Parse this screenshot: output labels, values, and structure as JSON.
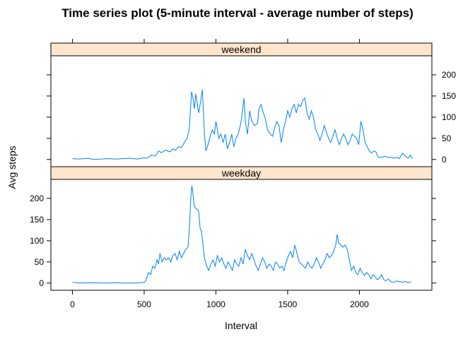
{
  "chart_data": {
    "type": "line",
    "title": "Time series plot (5-minute interval - average number of steps)",
    "xlabel": "Interval",
    "ylabel": "Avg steps",
    "xlim": [
      -150,
      2505
    ],
    "ylim": [
      -17,
      245
    ],
    "x_ticks": [
      0,
      500,
      1000,
      1500,
      2000
    ],
    "y_ticks": [
      0,
      50,
      100,
      150,
      200
    ],
    "grid": false,
    "line_color": "#0080ff",
    "strip_color": "#ffe5cc",
    "panels": [
      {
        "name": "weekend",
        "points": [
          [
            0,
            2
          ],
          [
            50,
            1
          ],
          [
            100,
            3
          ],
          [
            150,
            0
          ],
          [
            200,
            1
          ],
          [
            250,
            2
          ],
          [
            300,
            1
          ],
          [
            350,
            2
          ],
          [
            400,
            3
          ],
          [
            450,
            1
          ],
          [
            500,
            4
          ],
          [
            520,
            3
          ],
          [
            550,
            10
          ],
          [
            580,
            8
          ],
          [
            600,
            20
          ],
          [
            620,
            16
          ],
          [
            650,
            22
          ],
          [
            680,
            18
          ],
          [
            700,
            25
          ],
          [
            720,
            22
          ],
          [
            740,
            30
          ],
          [
            760,
            28
          ],
          [
            780,
            40
          ],
          [
            800,
            50
          ],
          [
            815,
            75
          ],
          [
            830,
            160
          ],
          [
            840,
            145
          ],
          [
            850,
            120
          ],
          [
            860,
            155
          ],
          [
            870,
            130
          ],
          [
            880,
            110
          ],
          [
            895,
            140
          ],
          [
            905,
            165
          ],
          [
            912,
            120
          ],
          [
            920,
            60
          ],
          [
            930,
            20
          ],
          [
            945,
            35
          ],
          [
            960,
            55
          ],
          [
            975,
            70
          ],
          [
            990,
            60
          ],
          [
            1000,
            90
          ],
          [
            1010,
            70
          ],
          [
            1020,
            50
          ],
          [
            1035,
            60
          ],
          [
            1050,
            40
          ],
          [
            1065,
            60
          ],
          [
            1080,
            25
          ],
          [
            1095,
            40
          ],
          [
            1110,
            60
          ],
          [
            1125,
            30
          ],
          [
            1140,
            50
          ],
          [
            1155,
            60
          ],
          [
            1170,
            80
          ],
          [
            1180,
            100
          ],
          [
            1195,
            145
          ],
          [
            1205,
            90
          ],
          [
            1220,
            60
          ],
          [
            1235,
            115
          ],
          [
            1250,
            90
          ],
          [
            1270,
            80
          ],
          [
            1290,
            85
          ],
          [
            1300,
            120
          ],
          [
            1315,
            130
          ],
          [
            1330,
            110
          ],
          [
            1345,
            95
          ],
          [
            1360,
            70
          ],
          [
            1380,
            60
          ],
          [
            1395,
            55
          ],
          [
            1410,
            75
          ],
          [
            1425,
            90
          ],
          [
            1440,
            80
          ],
          [
            1455,
            40
          ],
          [
            1470,
            70
          ],
          [
            1485,
            90
          ],
          [
            1500,
            115
          ],
          [
            1515,
            100
          ],
          [
            1530,
            120
          ],
          [
            1545,
            130
          ],
          [
            1560,
            110
          ],
          [
            1575,
            130
          ],
          [
            1590,
            125
          ],
          [
            1605,
            140
          ],
          [
            1620,
            145
          ],
          [
            1635,
            110
          ],
          [
            1650,
            95
          ],
          [
            1665,
            115
          ],
          [
            1680,
            100
          ],
          [
            1695,
            70
          ],
          [
            1710,
            60
          ],
          [
            1725,
            45
          ],
          [
            1740,
            60
          ],
          [
            1755,
            80
          ],
          [
            1770,
            65
          ],
          [
            1785,
            50
          ],
          [
            1800,
            40
          ],
          [
            1815,
            55
          ],
          [
            1830,
            70
          ],
          [
            1845,
            50
          ],
          [
            1860,
            35
          ],
          [
            1875,
            50
          ],
          [
            1890,
            60
          ],
          [
            1905,
            50
          ],
          [
            1920,
            35
          ],
          [
            1935,
            45
          ],
          [
            1950,
            60
          ],
          [
            1965,
            55
          ],
          [
            1980,
            50
          ],
          [
            1995,
            35
          ],
          [
            2010,
            90
          ],
          [
            2025,
            70
          ],
          [
            2040,
            40
          ],
          [
            2055,
            30
          ],
          [
            2070,
            20
          ],
          [
            2085,
            15
          ],
          [
            2100,
            20
          ],
          [
            2115,
            18
          ],
          [
            2130,
            5
          ],
          [
            2160,
            5
          ],
          [
            2180,
            8
          ],
          [
            2200,
            5
          ],
          [
            2220,
            5
          ],
          [
            2240,
            3
          ],
          [
            2260,
            5
          ],
          [
            2280,
            2
          ],
          [
            2300,
            15
          ],
          [
            2320,
            8
          ],
          [
            2340,
            3
          ],
          [
            2355,
            10
          ],
          [
            2370,
            2
          ]
        ]
      },
      {
        "name": "weekday",
        "points": [
          [
            0,
            2
          ],
          [
            20,
            1
          ],
          [
            50,
            0
          ],
          [
            80,
            1
          ],
          [
            100,
            0
          ],
          [
            150,
            1
          ],
          [
            200,
            0
          ],
          [
            250,
            0
          ],
          [
            300,
            1
          ],
          [
            350,
            0
          ],
          [
            400,
            0
          ],
          [
            450,
            0
          ],
          [
            480,
            1
          ],
          [
            500,
            2
          ],
          [
            510,
            5
          ],
          [
            520,
            15
          ],
          [
            530,
            25
          ],
          [
            545,
            20
          ],
          [
            560,
            40
          ],
          [
            575,
            35
          ],
          [
            590,
            55
          ],
          [
            600,
            45
          ],
          [
            610,
            70
          ],
          [
            625,
            50
          ],
          [
            640,
            60
          ],
          [
            655,
            55
          ],
          [
            670,
            60
          ],
          [
            685,
            50
          ],
          [
            700,
            65
          ],
          [
            715,
            70
          ],
          [
            730,
            55
          ],
          [
            745,
            75
          ],
          [
            760,
            60
          ],
          [
            775,
            70
          ],
          [
            790,
            80
          ],
          [
            805,
            85
          ],
          [
            815,
            130
          ],
          [
            825,
            200
          ],
          [
            832,
            230
          ],
          [
            840,
            210
          ],
          [
            850,
            180
          ],
          [
            865,
            175
          ],
          [
            880,
            170
          ],
          [
            890,
            130
          ],
          [
            900,
            120
          ],
          [
            910,
            90
          ],
          [
            920,
            60
          ],
          [
            935,
            40
          ],
          [
            950,
            30
          ],
          [
            965,
            45
          ],
          [
            980,
            55
          ],
          [
            995,
            40
          ],
          [
            1010,
            65
          ],
          [
            1025,
            50
          ],
          [
            1040,
            60
          ],
          [
            1055,
            45
          ],
          [
            1070,
            35
          ],
          [
            1085,
            50
          ],
          [
            1100,
            40
          ],
          [
            1115,
            30
          ],
          [
            1130,
            55
          ],
          [
            1145,
            45
          ],
          [
            1160,
            40
          ],
          [
            1175,
            60
          ],
          [
            1190,
            45
          ],
          [
            1205,
            80
          ],
          [
            1220,
            65
          ],
          [
            1235,
            55
          ],
          [
            1250,
            70
          ],
          [
            1265,
            55
          ],
          [
            1280,
            40
          ],
          [
            1295,
            30
          ],
          [
            1310,
            45
          ],
          [
            1325,
            60
          ],
          [
            1340,
            50
          ],
          [
            1355,
            35
          ],
          [
            1370,
            45
          ],
          [
            1385,
            40
          ],
          [
            1400,
            30
          ],
          [
            1415,
            50
          ],
          [
            1430,
            45
          ],
          [
            1445,
            35
          ],
          [
            1460,
            40
          ],
          [
            1475,
            30
          ],
          [
            1490,
            50
          ],
          [
            1505,
            65
          ],
          [
            1520,
            75
          ],
          [
            1535,
            60
          ],
          [
            1550,
            90
          ],
          [
            1565,
            70
          ],
          [
            1580,
            50
          ],
          [
            1595,
            45
          ],
          [
            1610,
            40
          ],
          [
            1625,
            35
          ],
          [
            1640,
            50
          ],
          [
            1655,
            40
          ],
          [
            1670,
            35
          ],
          [
            1685,
            45
          ],
          [
            1700,
            60
          ],
          [
            1715,
            50
          ],
          [
            1730,
            35
          ],
          [
            1745,
            45
          ],
          [
            1760,
            55
          ],
          [
            1775,
            70
          ],
          [
            1790,
            60
          ],
          [
            1805,
            65
          ],
          [
            1820,
            75
          ],
          [
            1835,
            90
          ],
          [
            1845,
            115
          ],
          [
            1855,
            95
          ],
          [
            1870,
            90
          ],
          [
            1885,
            85
          ],
          [
            1900,
            90
          ],
          [
            1915,
            80
          ],
          [
            1930,
            55
          ],
          [
            1945,
            30
          ],
          [
            1960,
            40
          ],
          [
            1975,
            25
          ],
          [
            1990,
            20
          ],
          [
            2005,
            35
          ],
          [
            2020,
            25
          ],
          [
            2035,
            18
          ],
          [
            2050,
            25
          ],
          [
            2065,
            20
          ],
          [
            2080,
            10
          ],
          [
            2095,
            20
          ],
          [
            2110,
            15
          ],
          [
            2125,
            8
          ],
          [
            2140,
            12
          ],
          [
            2155,
            20
          ],
          [
            2170,
            8
          ],
          [
            2185,
            5
          ],
          [
            2200,
            10
          ],
          [
            2220,
            3
          ],
          [
            2240,
            2
          ],
          [
            2260,
            5
          ],
          [
            2280,
            3
          ],
          [
            2300,
            2
          ],
          [
            2320,
            4
          ],
          [
            2340,
            1
          ],
          [
            2360,
            3
          ]
        ]
      }
    ]
  }
}
